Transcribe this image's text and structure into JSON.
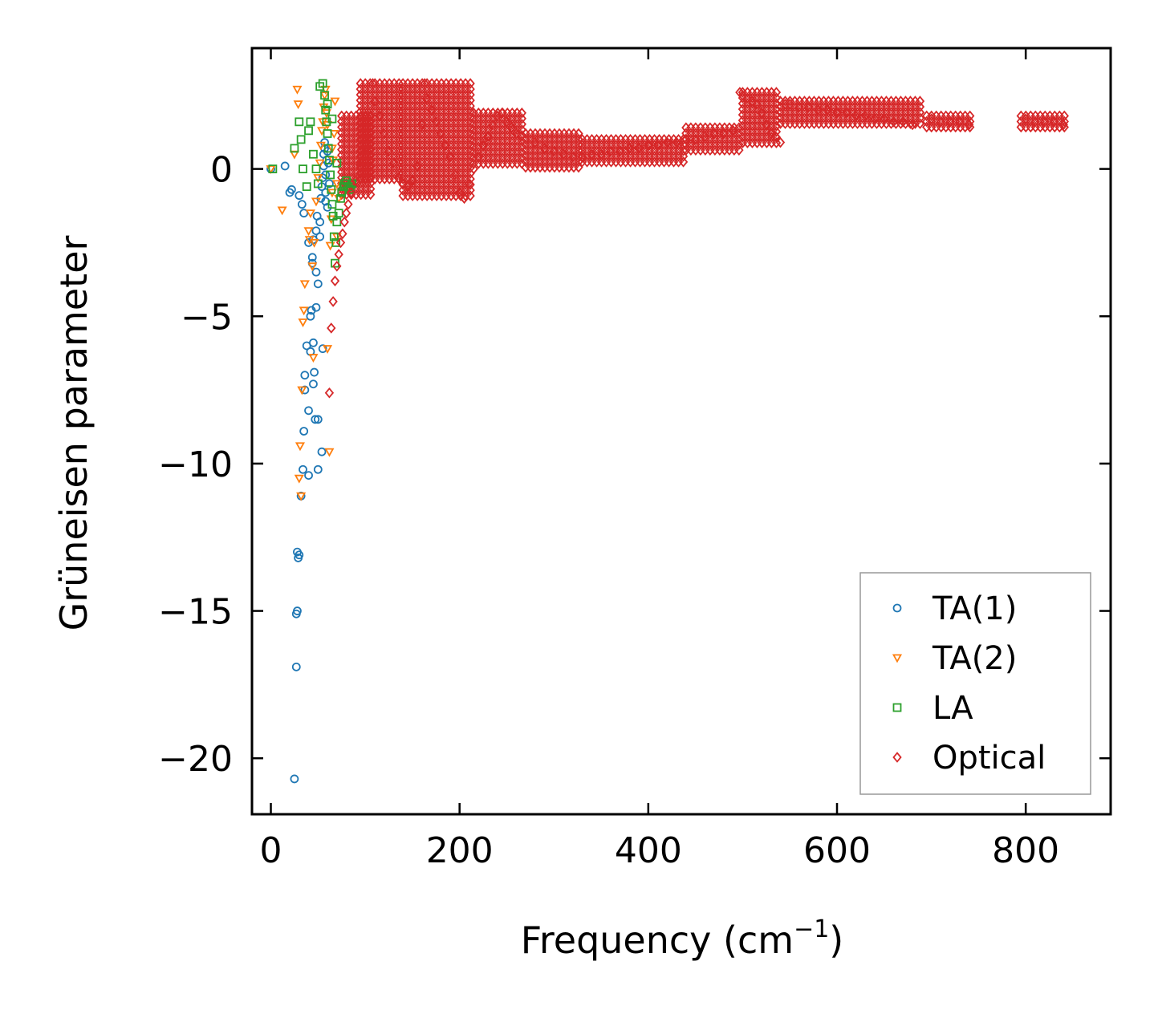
{
  "chart_data": {
    "type": "scatter",
    "title": "",
    "xlabel": "Frequency (cm",
    "xlabel_sup": "−1",
    "xlabel_tail": ")",
    "ylabel": "Grüneisen parameter",
    "xlim": [
      -20,
      890
    ],
    "ylim": [
      -21.9,
      4.1
    ],
    "x_ticks": [
      0,
      200,
      400,
      600,
      800
    ],
    "x_tick_labels": [
      "0",
      "200",
      "400",
      "600",
      "800"
    ],
    "y_ticks": [
      0,
      -5,
      -10,
      -15,
      -20
    ],
    "y_tick_labels": [
      "0",
      "−5",
      "−10",
      "−15",
      "−20"
    ],
    "grid": false,
    "legend_position": "bottom-right",
    "series": [
      {
        "name": "TA(1)",
        "marker": "circle",
        "color": "#1f77b4",
        "x": [
          0,
          15,
          25,
          27,
          27,
          28,
          28,
          29,
          30,
          32,
          34,
          35,
          36,
          36,
          38,
          40,
          40,
          42,
          42,
          43,
          44,
          45,
          45,
          46,
          47,
          48,
          48,
          49,
          50,
          50,
          52,
          53,
          54,
          54,
          55,
          56,
          56,
          57,
          57,
          58,
          58,
          59,
          60,
          60,
          61,
          62,
          45,
          50,
          55,
          52,
          58,
          48,
          44,
          40,
          35,
          33,
          30,
          20,
          22
        ],
        "y": [
          0,
          0.1,
          -20.7,
          -16.9,
          -15.1,
          -15.0,
          -13.0,
          -13.2,
          -13.1,
          -11.1,
          -10.2,
          -8.9,
          -7.5,
          -7.0,
          -6.0,
          -10.4,
          -8.2,
          -6.2,
          -5.0,
          -4.8,
          -3.2,
          -2.4,
          -5.9,
          -6.9,
          -8.5,
          -4.7,
          -2.1,
          -1.6,
          -10.2,
          -3.9,
          -2.3,
          -1.0,
          -0.6,
          -9.6,
          -0.3,
          0.1,
          0.5,
          0.7,
          0.9,
          -0.8,
          -0.2,
          0.3,
          0.6,
          -1.3,
          0.2,
          -0.5,
          -7.3,
          -8.5,
          -6.1,
          -1.8,
          -1.1,
          -3.5,
          -3.0,
          -2.5,
          -1.5,
          -1.2,
          -0.9,
          -0.8,
          -0.7
        ]
      },
      {
        "name": "TA(2)",
        "marker": "triangle-down",
        "color": "#ff7f0e",
        "x": [
          0,
          12,
          25,
          28,
          29,
          30,
          31,
          32,
          33,
          34,
          35,
          36,
          40,
          41,
          42,
          44,
          45,
          46,
          48,
          50,
          52,
          53,
          54,
          55,
          56,
          57,
          58,
          59,
          60,
          62,
          63,
          64,
          65,
          66,
          67,
          68,
          70,
          72,
          70,
          65,
          60
        ],
        "y": [
          0,
          -1.4,
          0.5,
          2.7,
          2.2,
          -10.5,
          -9.4,
          -11.1,
          -7.5,
          -5.2,
          -4.8,
          -3.9,
          -2.1,
          -2.4,
          -1.5,
          -3.3,
          -6.4,
          -2.5,
          -1.1,
          -0.3,
          0.2,
          0.8,
          1.3,
          1.6,
          2.1,
          2.5,
          2.7,
          1.9,
          -6.1,
          -9.6,
          -2.6,
          -1.7,
          -0.8,
          0.3,
          1.2,
          2.3,
          -2.3,
          -1.0,
          -0.5,
          0.7,
          1.5
        ]
      },
      {
        "name": "LA",
        "marker": "square",
        "color": "#2ca02c",
        "x": [
          2,
          25,
          30,
          32,
          34,
          38,
          40,
          42,
          45,
          48,
          50,
          52,
          55,
          57,
          58,
          59,
          60,
          61,
          62,
          63,
          64,
          65,
          66,
          67,
          68,
          69,
          70,
          72,
          74,
          75,
          77,
          78,
          80,
          82,
          84,
          86,
          60,
          65,
          70
        ],
        "y": [
          0,
          0.7,
          1.6,
          1.0,
          0.0,
          -0.6,
          1.3,
          1.6,
          0.5,
          0.0,
          -0.5,
          2.8,
          2.9,
          2.5,
          2.0,
          1.6,
          1.2,
          0.7,
          0.3,
          -0.2,
          -0.7,
          -1.2,
          -1.6,
          -2.3,
          -3.2,
          -2.5,
          -1.8,
          -1.5,
          -1.0,
          -0.8,
          -0.6,
          -0.5,
          -0.4,
          -0.6,
          -0.7,
          -0.5,
          2.2,
          1.7,
          0.2
        ]
      },
      {
        "name": "Optical",
        "marker": "diamond",
        "color": "#d62728",
        "x": [
          62,
          64,
          66,
          68,
          70,
          72,
          74,
          76,
          78,
          80,
          82,
          85,
          90,
          95,
          100,
          105,
          108,
          110,
          115,
          120,
          125,
          130,
          135,
          140,
          145,
          150,
          155,
          160,
          163,
          165,
          170,
          175,
          180,
          185,
          190,
          195,
          200,
          205,
          210,
          215,
          220,
          225,
          230,
          235,
          240,
          245,
          250,
          255,
          260,
          265,
          270,
          280,
          290,
          300,
          310,
          320,
          330,
          340,
          350,
          360,
          370,
          380,
          390,
          400,
          410,
          420,
          430,
          440,
          450,
          460,
          470,
          480,
          490,
          497,
          500,
          505,
          510,
          515,
          520,
          525,
          530,
          535,
          540,
          545,
          550,
          560,
          570,
          580,
          590,
          600,
          610,
          620,
          630,
          640,
          650,
          660,
          670,
          680,
          700,
          710,
          720,
          730,
          740,
          800,
          810,
          820,
          830,
          840
        ],
        "y": [
          -7.6,
          -5.4,
          -4.5,
          -3.8,
          -3.3,
          -2.9,
          -2.5,
          -2.2,
          -1.8,
          -1.5,
          -1.2,
          -0.8,
          -0.4,
          0.1,
          0.5,
          1.0,
          2.9,
          2.3,
          1.8,
          1.2,
          0.6,
          0.2,
          -0.3,
          -0.5,
          -0.6,
          -0.4,
          0.1,
          1.5,
          2.9,
          2.4,
          2.0,
          1.6,
          1.2,
          0.8,
          0.4,
          -0.2,
          -0.8,
          -1.0,
          -0.5,
          0.0,
          0.4,
          0.8,
          1.1,
          1.5,
          1.8,
          1.9,
          1.6,
          1.4,
          1.2,
          1.1,
          1.0,
          0.9,
          0.7,
          0.6,
          0.5,
          0.4,
          0.4,
          0.5,
          0.5,
          0.6,
          0.6,
          0.7,
          0.7,
          0.8,
          0.8,
          0.9,
          0.9,
          1.0,
          1.0,
          1.1,
          1.2,
          1.2,
          1.3,
          2.6,
          2.5,
          2.4,
          2.3,
          2.2,
          1.9,
          1.5,
          1.2,
          1.1,
          0.9,
          2.2,
          2.2,
          2.1,
          2.1,
          2.0,
          2.0,
          1.9,
          1.9,
          1.8,
          1.8,
          1.7,
          1.7,
          1.6,
          1.6,
          1.5,
          1.7,
          1.6,
          1.6,
          1.6,
          1.5,
          1.7,
          1.6,
          1.6,
          1.6,
          1.5
        ]
      }
    ],
    "optical_bands": [
      {
        "x_start": 75,
        "x_end": 110,
        "y_low": -1.0,
        "y_high": 1.8
      },
      {
        "x_start": 95,
        "x_end": 140,
        "y_low": -0.4,
        "y_high": 2.9
      },
      {
        "x_start": 140,
        "x_end": 215,
        "y_low": -1.0,
        "y_high": 2.9
      },
      {
        "x_start": 215,
        "x_end": 270,
        "y_low": 0.1,
        "y_high": 1.9
      },
      {
        "x_start": 270,
        "x_end": 330,
        "y_low": 0.0,
        "y_high": 1.2
      },
      {
        "x_start": 330,
        "x_end": 440,
        "y_low": 0.2,
        "y_high": 1.0
      },
      {
        "x_start": 440,
        "x_end": 500,
        "y_low": 0.6,
        "y_high": 1.4
      },
      {
        "x_start": 500,
        "x_end": 540,
        "y_low": 0.8,
        "y_high": 2.6
      },
      {
        "x_start": 540,
        "x_end": 690,
        "y_low": 1.5,
        "y_high": 2.3
      },
      {
        "x_start": 695,
        "x_end": 745,
        "y_low": 1.4,
        "y_high": 1.8
      },
      {
        "x_start": 795,
        "x_end": 845,
        "y_low": 1.4,
        "y_high": 1.8
      }
    ]
  }
}
